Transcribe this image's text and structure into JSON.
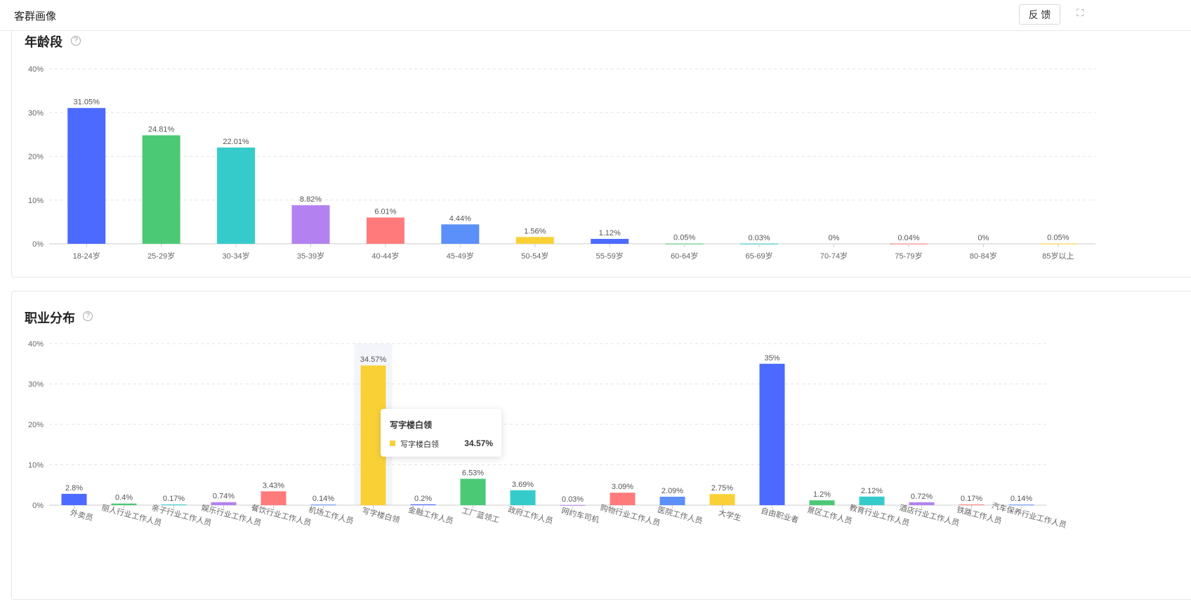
{
  "header": {
    "title": "客群画像",
    "feedback_label": "反 馈",
    "expand_icon": "expand-icon"
  },
  "colors": [
    "#4C6AFF",
    "#4CC974",
    "#36CBCB",
    "#B382F0",
    "#FF7B7B",
    "#5B8FF9",
    "#F9D137"
  ],
  "age": {
    "title": "年龄段",
    "help": "?"
  },
  "occupation": {
    "title": "职业分布",
    "help": "?"
  },
  "tooltip": {
    "title": "写字楼白领",
    "series": "写字楼白领",
    "value": "34.57%"
  },
  "chart_data": [
    {
      "type": "bar",
      "title": "年龄段",
      "ylim": [
        0,
        40
      ],
      "yticks": [
        "0%",
        "10%",
        "20%",
        "30%",
        "40%"
      ],
      "grid": true,
      "categories": [
        "18-24岁",
        "25-29岁",
        "30-34岁",
        "35-39岁",
        "40-44岁",
        "45-49岁",
        "50-54岁",
        "55-59岁",
        "60-64岁",
        "65-69岁",
        "70-74岁",
        "75-79岁",
        "80-84岁",
        "85岁以上"
      ],
      "values": [
        31.05,
        24.81,
        22.01,
        8.82,
        6.01,
        4.44,
        1.56,
        1.12,
        0.05,
        0.03,
        0,
        0.04,
        0,
        0.05
      ],
      "labels": [
        "31.05%",
        "24.81%",
        "22.01%",
        "8.82%",
        "6.01%",
        "4.44%",
        "1.56%",
        "1.12%",
        "0.05%",
        "0.03%",
        "0%",
        "0.04%",
        "0%",
        "0.05%"
      ]
    },
    {
      "type": "bar",
      "title": "职业分布",
      "ylim": [
        0,
        40
      ],
      "yticks": [
        "0%",
        "10%",
        "20%",
        "30%",
        "40%"
      ],
      "grid": true,
      "categories": [
        "外卖员",
        "丽人行业工作人员",
        "亲子行业工作人员",
        "娱乐行业工作人员",
        "餐饮行业工作人员",
        "机场工作人员",
        "写字楼白领",
        "金融工作人员",
        "工厂蓝领工",
        "政府工作人员",
        "网约车司机",
        "购物行业工作人员",
        "医院工作人员",
        "大学生",
        "自由职业者",
        "景区工作人员",
        "教育行业工作人员",
        "酒店行业工作人员",
        "铁路工作人员",
        "汽车保养行业工作人员"
      ],
      "values": [
        2.8,
        0.4,
        0.17,
        0.74,
        3.43,
        0.14,
        34.57,
        0.2,
        6.53,
        3.69,
        0.03,
        3.09,
        2.09,
        2.75,
        35,
        1.2,
        2.12,
        0.72,
        0.17,
        0.14
      ],
      "labels": [
        "2.8%",
        "0.4%",
        "0.17%",
        "0.74%",
        "3.43%",
        "0.14%",
        "34.57%",
        "0.2%",
        "6.53%",
        "3.69%",
        "0.03%",
        "3.09%",
        "2.09%",
        "2.75%",
        "35%",
        "1.2%",
        "2.12%",
        "0.72%",
        "0.17%",
        "0.14%"
      ],
      "highlighted": "写字楼白领"
    }
  ]
}
